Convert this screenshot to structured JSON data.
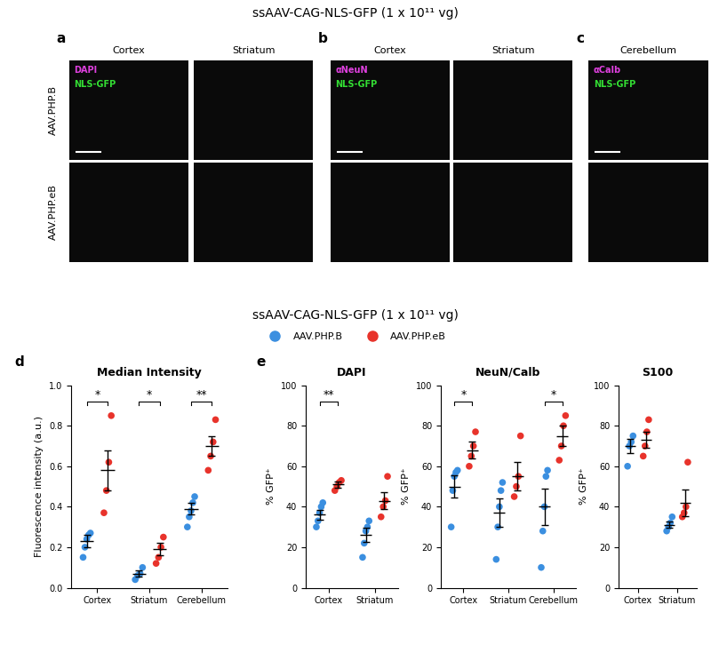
{
  "image_panels": {
    "title": "ssAAV-CAG-NLS-GFP (1 x 10¹¹ vg)",
    "rows": [
      "AAV.PHP.B",
      "AAV.PHP.eB"
    ],
    "panels": [
      {
        "letter": "a",
        "columns": [
          "Cortex",
          "Striatum"
        ],
        "markers": [
          {
            "name": "DAPI",
            "color": "#e040e0"
          },
          {
            "name": "NLS-GFP",
            "color": "#33dd33"
          }
        ]
      },
      {
        "letter": "b",
        "columns": [
          "Cortex",
          "Striatum"
        ],
        "markers": [
          {
            "name": "αNeuN",
            "color": "#e040e0"
          },
          {
            "name": "NLS-GFP",
            "color": "#33dd33"
          }
        ]
      },
      {
        "letter": "c",
        "columns": [
          "Cerebellum"
        ],
        "markers": [
          {
            "name": "αCalb",
            "color": "#e040e0"
          },
          {
            "name": "NLS-GFP",
            "color": "#33dd33"
          }
        ]
      }
    ]
  },
  "charts_title": "ssAAV-CAG-NLS-GFP (1 x 10¹¹ vg)",
  "chart_letters": [
    "d",
    "e"
  ],
  "chart_data": [
    {
      "type": "scatter",
      "title": "Median Intensity",
      "ylabel": "Fluorescence intensity (a.u.)",
      "categories": [
        "Cortex",
        "Striatum",
        "Cerebellum"
      ],
      "ylim": [
        0.0,
        1.0
      ],
      "yticks": [
        0.0,
        0.2,
        0.4,
        0.6,
        0.8,
        1.0
      ],
      "legend": "top",
      "significance": [
        "*",
        "*",
        "**"
      ],
      "series": [
        {
          "name": "AAV.PHP.B",
          "color": "#3b8fe0",
          "values": [
            [
              0.15,
              0.2,
              0.24,
              0.26,
              0.27
            ],
            [
              0.04,
              0.06,
              0.07,
              0.1
            ],
            [
              0.3,
              0.35,
              0.38,
              0.42,
              0.45
            ]
          ],
          "means": [
            0.23,
            0.07,
            0.39
          ],
          "errors": [
            0.03,
            0.015,
            0.03
          ]
        },
        {
          "name": "AAV.PHP.eB",
          "color": "#e8332b",
          "values": [
            [
              0.37,
              0.48,
              0.62,
              0.85
            ],
            [
              0.12,
              0.15,
              0.2,
              0.25
            ],
            [
              0.58,
              0.65,
              0.72,
              0.83
            ]
          ],
          "means": [
            0.58,
            0.19,
            0.7
          ],
          "errors": [
            0.1,
            0.03,
            0.05
          ]
        }
      ]
    },
    {
      "type": "scatter",
      "title": "DAPI",
      "ylabel": "% GFP⁺",
      "categories": [
        "Cortex",
        "Striatum"
      ],
      "ylim": [
        0,
        100
      ],
      "yticks": [
        0,
        20,
        40,
        60,
        80,
        100
      ],
      "significance": [
        "**",
        null
      ],
      "series": [
        {
          "name": "AAV.PHP.B",
          "color": "#3b8fe0",
          "values": [
            [
              30,
              33,
              37,
              40,
              42
            ],
            [
              15,
              22,
              28,
              30,
              33
            ]
          ],
          "means": [
            36,
            26
          ],
          "errors": [
            2.5,
            3.5
          ]
        },
        {
          "name": "AAV.PHP.eB",
          "color": "#e8332b",
          "values": [
            [
              48,
              50,
              52,
              53
            ],
            [
              35,
              40,
              43,
              55
            ]
          ],
          "means": [
            51,
            43
          ],
          "errors": [
            1.5,
            4
          ]
        }
      ]
    },
    {
      "type": "scatter",
      "title": "NeuN/Calb",
      "ylabel": "% GFP⁺",
      "categories": [
        "Cortex",
        "Striatum",
        "Cerebellum"
      ],
      "ylim": [
        0,
        100
      ],
      "yticks": [
        0,
        20,
        40,
        60,
        80,
        100
      ],
      "significance": [
        "*",
        null,
        "*"
      ],
      "series": [
        {
          "name": "AAV.PHP.B",
          "color": "#3b8fe0",
          "values": [
            [
              30,
              48,
              55,
              57,
              58
            ],
            [
              14,
              30,
              40,
              48,
              52
            ],
            [
              10,
              28,
              40,
              55,
              58
            ]
          ],
          "means": [
            50,
            37,
            40
          ],
          "errors": [
            5.5,
            7,
            9
          ]
        },
        {
          "name": "AAV.PHP.eB",
          "color": "#e8332b",
          "values": [
            [
              60,
              65,
              70,
              77
            ],
            [
              45,
              50,
              55,
              75
            ],
            [
              63,
              70,
              80,
              85
            ]
          ],
          "means": [
            68,
            55,
            75
          ],
          "errors": [
            4,
            7,
            5
          ]
        }
      ]
    },
    {
      "type": "scatter",
      "title": "S100",
      "ylabel": "% GFP⁺",
      "categories": [
        "Cortex",
        "Striatum"
      ],
      "ylim": [
        0,
        100
      ],
      "yticks": [
        0,
        20,
        40,
        60,
        80,
        100
      ],
      "significance": [
        null,
        null
      ],
      "series": [
        {
          "name": "AAV.PHP.B",
          "color": "#3b8fe0",
          "values": [
            [
              60,
              70,
              72,
              75
            ],
            [
              28,
              30,
              32,
              35
            ]
          ],
          "means": [
            70,
            31
          ],
          "errors": [
            3.5,
            1.5
          ]
        },
        {
          "name": "AAV.PHP.eB",
          "color": "#e8332b",
          "values": [
            [
              65,
              70,
              77,
              83
            ],
            [
              35,
              37,
              40,
              62
            ]
          ],
          "means": [
            73,
            42
          ],
          "errors": [
            4,
            6.5
          ]
        }
      ]
    }
  ]
}
